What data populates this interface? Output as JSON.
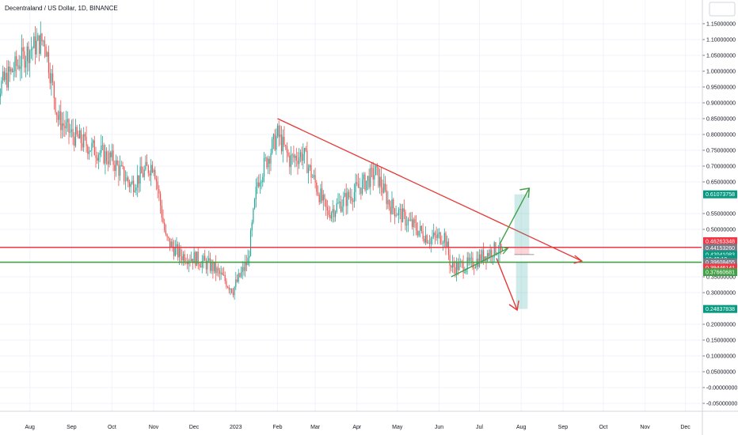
{
  "header": {
    "title": "Decentraland / US Dollar, 1D, BINANCE"
  },
  "colors": {
    "up": "#26a69a",
    "down": "#ef5350",
    "grid": "#f0f3fa",
    "resistance": "#f23645",
    "support": "#43a047",
    "trendline": "#e53935",
    "target_zone": "#26a69a",
    "stop_zone": "#f7525f"
  },
  "chart_data": {
    "type": "candlestick",
    "title": "Decentraland / US Dollar, 1D, BINANCE",
    "x_ticks": [
      "Aug",
      "Sep",
      "Oct",
      "Nov",
      "Dec",
      "2023",
      "Feb",
      "Mar",
      "Apr",
      "May",
      "Jun",
      "Jul",
      "Aug",
      "Sep",
      "Oct",
      "Nov",
      "Dec"
    ],
    "y_ticks": [
      "1.15000000",
      "1.10000000",
      "1.05000000",
      "1.00000000",
      "0.95000000",
      "0.90000000",
      "0.85000000",
      "0.80000000",
      "0.75000000",
      "0.70000000",
      "0.65000000",
      "0.55000000",
      "0.50000000",
      "0.35000000",
      "0.30000000",
      "0.20000000",
      "0.15000000",
      "0.10000000",
      "0.05000000",
      "-0.00000000",
      "-0.05000000"
    ],
    "y_tick_values": [
      1.15,
      1.1,
      1.05,
      1.0,
      0.95,
      0.9,
      0.85,
      0.8,
      0.75,
      0.7,
      0.65,
      0.55,
      0.5,
      0.35,
      0.3,
      0.2,
      0.15,
      0.1,
      0.05,
      0.0,
      -0.05
    ],
    "ylim": [
      -0.08,
      1.18
    ],
    "price_path": [
      {
        "date": "2022-07-01",
        "price": 0.9
      },
      {
        "date": "2022-07-15",
        "price": 0.98
      },
      {
        "date": "2022-08-01",
        "price": 1.07
      },
      {
        "date": "2022-08-12",
        "price": 1.1
      },
      {
        "date": "2022-08-22",
        "price": 0.85
      },
      {
        "date": "2022-09-01",
        "price": 0.8
      },
      {
        "date": "2022-09-15",
        "price": 0.76
      },
      {
        "date": "2022-10-01",
        "price": 0.72
      },
      {
        "date": "2022-10-15",
        "price": 0.64
      },
      {
        "date": "2022-11-01",
        "price": 0.71
      },
      {
        "date": "2022-11-10",
        "price": 0.47
      },
      {
        "date": "2022-11-20",
        "price": 0.42
      },
      {
        "date": "2022-12-01",
        "price": 0.41
      },
      {
        "date": "2022-12-15",
        "price": 0.38
      },
      {
        "date": "2022-12-30",
        "price": 0.31
      },
      {
        "date": "2023-01-10",
        "price": 0.4
      },
      {
        "date": "2023-01-17",
        "price": 0.65
      },
      {
        "date": "2023-02-01",
        "price": 0.8
      },
      {
        "date": "2023-02-10",
        "price": 0.72
      },
      {
        "date": "2023-02-20",
        "price": 0.74
      },
      {
        "date": "2023-03-10",
        "price": 0.55
      },
      {
        "date": "2023-03-25",
        "price": 0.6
      },
      {
        "date": "2023-04-15",
        "price": 0.68
      },
      {
        "date": "2023-04-25",
        "price": 0.58
      },
      {
        "date": "2023-05-10",
        "price": 0.52
      },
      {
        "date": "2023-05-25",
        "price": 0.47
      },
      {
        "date": "2023-06-05",
        "price": 0.48
      },
      {
        "date": "2023-06-10",
        "price": 0.38
      },
      {
        "date": "2023-06-25",
        "price": 0.39
      },
      {
        "date": "2023-07-05",
        "price": 0.42
      },
      {
        "date": "2023-07-14",
        "price": 0.44
      },
      {
        "date": "2023-07-18",
        "price": 0.42
      }
    ],
    "resistance_level": 0.44315575,
    "support_level": 0.39608455,
    "trendline": {
      "start": {
        "date": "2023-02-01",
        "price": 0.85
      },
      "end": {
        "date": "2023-09-15",
        "price": 0.4
      }
    },
    "rising_support": {
      "start": {
        "date": "2023-06-10",
        "price": 0.35
      },
      "end": {
        "date": "2023-07-22",
        "price": 0.44
      }
    },
    "targets": {
      "up": 0.61073758,
      "down": 0.24837838
    },
    "price_badges": [
      {
        "label": "0.61073758",
        "value": 0.61073758,
        "color": "#089981"
      },
      {
        "label": "0.46263348",
        "value": 0.46263348,
        "color": "#f23645"
      },
      {
        "label": "0.44315575",
        "value": 0.44315575,
        "color": "#f23645"
      },
      {
        "label": "0.44153260",
        "value": 0.4415326,
        "color": "#787b86"
      },
      {
        "label": "0.42041083",
        "value": 0.42041083,
        "color": "#089981"
      },
      {
        "label": "18:49:10",
        "value": 0.406,
        "color": "#089981"
      },
      {
        "label": "0.39608455",
        "value": 0.39608455,
        "color": "#787b86"
      },
      {
        "label": "0.39446141",
        "value": 0.379,
        "color": "#f23645"
      },
      {
        "label": "0.37660681",
        "value": 0.365,
        "color": "#43a047"
      },
      {
        "label": "0.24837838",
        "value": 0.24837838,
        "color": "#089981"
      }
    ]
  }
}
